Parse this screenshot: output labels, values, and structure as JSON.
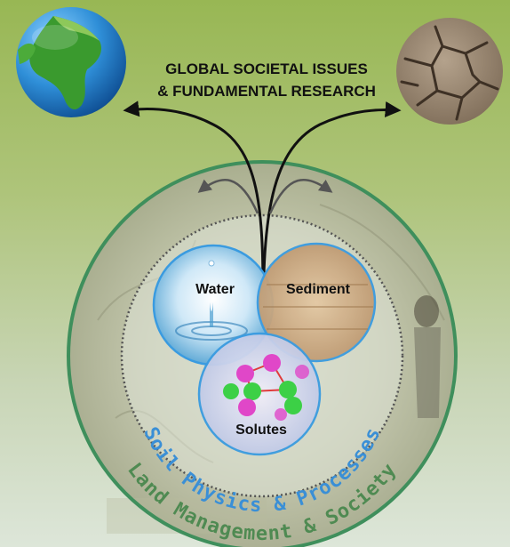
{
  "title": {
    "line1": "GLOBAL SOCIETAL ISSUES",
    "line2": "& FUNDAMENTAL RESEARCH"
  },
  "circles": {
    "water": "Water",
    "sediment": "Sediment",
    "solutes": "Solutes"
  },
  "rings": {
    "inner": "Soil Physics & Processes",
    "outer": "Land Management & Society"
  },
  "colors": {
    "background_top": "#9ab955",
    "background_bottom": "#dde6d9",
    "outer_ring": "#3f8f5c",
    "inner_ring_dotted": "#555555",
    "circle_border": "#3a9be0",
    "inner_text": "#3a8fd6",
    "outer_text": "#4f8a52"
  }
}
